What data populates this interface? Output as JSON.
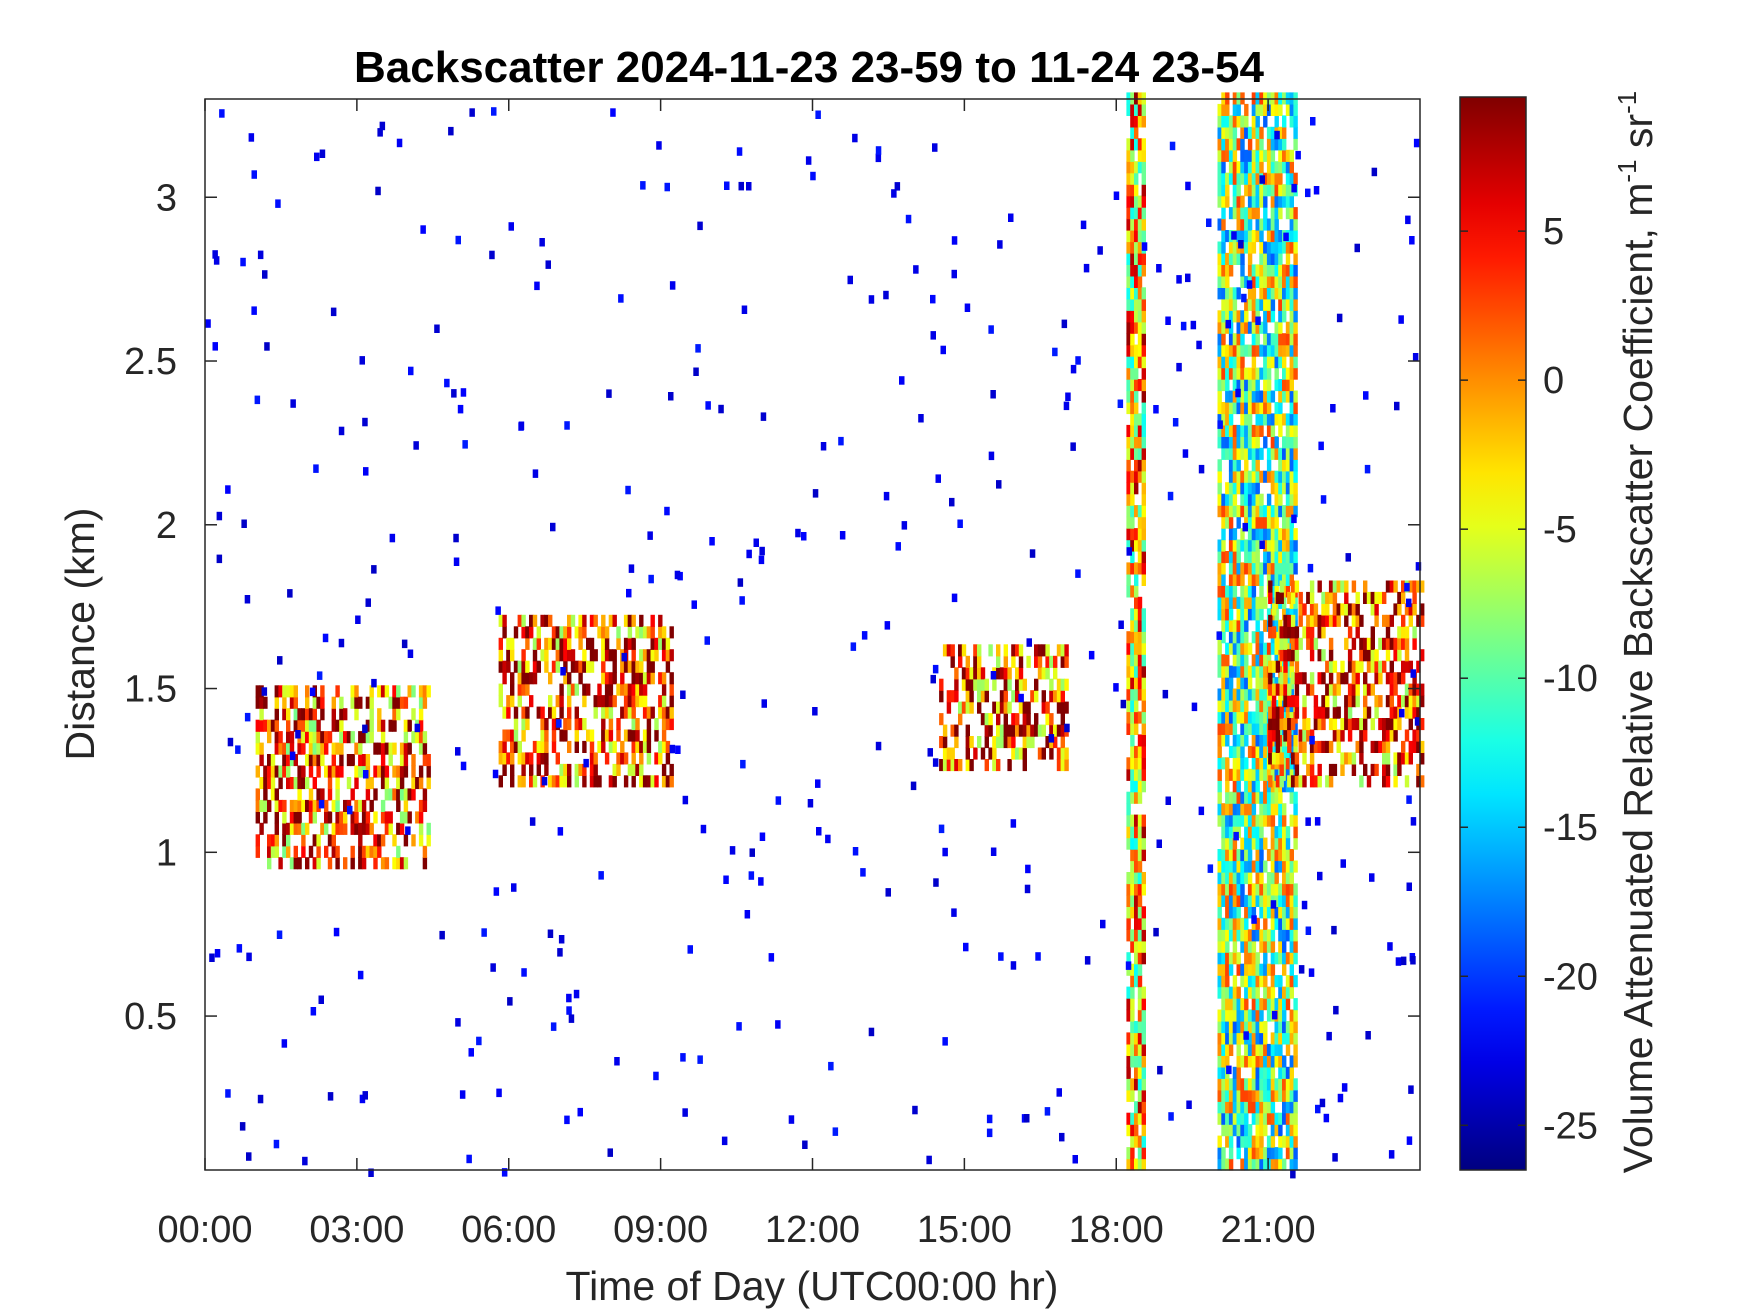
{
  "chart_data": {
    "type": "heatmap",
    "title": "Backscatter 2024-11-23 23-59 to 11-24 23-54",
    "xlabel": "Time of Day (UTC00:00 hr)",
    "ylabel": "Distance (km)",
    "xlim": [
      0,
      24
    ],
    "ylim": [
      0.03,
      3.3
    ],
    "x_ticks": [
      {
        "value": 0,
        "label": "00:00"
      },
      {
        "value": 3,
        "label": "03:00"
      },
      {
        "value": 6,
        "label": "06:00"
      },
      {
        "value": 9,
        "label": "09:00"
      },
      {
        "value": 12,
        "label": "12:00"
      },
      {
        "value": 15,
        "label": "15:00"
      },
      {
        "value": 18,
        "label": "18:00"
      },
      {
        "value": 21,
        "label": "21:00"
      }
    ],
    "y_ticks": [
      {
        "value": 0.5,
        "label": "0.5"
      },
      {
        "value": 1,
        "label": "1"
      },
      {
        "value": 1.5,
        "label": "1.5"
      },
      {
        "value": 2,
        "label": "2"
      },
      {
        "value": 2.5,
        "label": "2.5"
      },
      {
        "value": 3,
        "label": "3"
      }
    ],
    "colorbar": {
      "colormap": "jet",
      "clim": [
        -26.5,
        9.5
      ],
      "label_main": "Volume Attenuated Relative Backscatter Coefficient, m",
      "label_sup1": "-1",
      "label_mid": " sr",
      "label_sup2": "-1",
      "ticks": [
        {
          "value": -25,
          "label": "-25"
        },
        {
          "value": -20,
          "label": "-20"
        },
        {
          "value": -15,
          "label": "-15"
        },
        {
          "value": -10,
          "label": "-10"
        },
        {
          "value": -5,
          "label": "-5"
        },
        {
          "value": 0,
          "label": "0"
        },
        {
          "value": 5,
          "label": "5"
        }
      ]
    },
    "features": [
      {
        "desc": "boundary layer aerosol top",
        "x_range": [
          1.0,
          4.4
        ],
        "y_range": [
          0.95,
          1.5
        ],
        "value": 2
      },
      {
        "desc": "aerosol layer",
        "x_range": [
          5.8,
          9.2
        ],
        "y_range": [
          1.2,
          1.7
        ],
        "value": 3
      },
      {
        "desc": "aerosol layer",
        "x_range": [
          14.5,
          17.0
        ],
        "y_range": [
          1.25,
          1.6
        ],
        "value": 3
      },
      {
        "desc": "cloud / precipitation column",
        "x_range": [
          18.2,
          18.5
        ],
        "y_range": [
          0.03,
          3.3
        ],
        "value": -2
      },
      {
        "desc": "cloud / precipitation column",
        "x_range": [
          20.0,
          21.5
        ],
        "y_range": [
          0.03,
          3.3
        ],
        "value": -8
      },
      {
        "desc": "elevated layer",
        "x_range": [
          21.0,
          24.0
        ],
        "y_range": [
          1.2,
          1.8
        ],
        "value": 3
      }
    ]
  }
}
